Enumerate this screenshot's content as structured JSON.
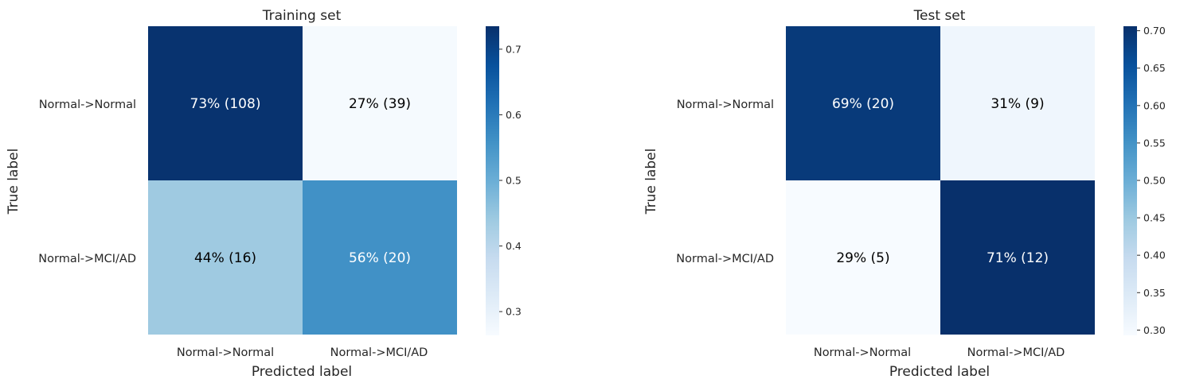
{
  "chart_data": [
    {
      "type": "heatmap",
      "title": "Training set",
      "xlabel": "Predicted label",
      "ylabel": "True label",
      "x_categories": [
        "Normal->Normal",
        "Normal->MCI/AD"
      ],
      "y_categories": [
        "Normal->Normal",
        "Normal->MCI/AD"
      ],
      "values": [
        [
          0.73,
          0.27
        ],
        [
          0.44,
          0.56
        ]
      ],
      "cell_labels": [
        [
          "73%  (108)",
          "27%  (39)"
        ],
        [
          "44%  (16)",
          "56%  (20)"
        ]
      ],
      "colorbar": {
        "range": [
          0.265,
          0.735
        ],
        "ticks": [
          0.3,
          0.4,
          0.5,
          0.6,
          0.7
        ],
        "tick_labels": [
          "0.3",
          "0.4",
          "0.5",
          "0.6",
          "0.7"
        ]
      },
      "colormap": "Blues"
    },
    {
      "type": "heatmap",
      "title": "Test set",
      "xlabel": "Predicted label",
      "ylabel": "True label",
      "x_categories": [
        "Normal->Normal",
        "Normal->MCI/AD"
      ],
      "y_categories": [
        "Normal->Normal",
        "Normal->MCI/AD"
      ],
      "values": [
        [
          0.69,
          0.31
        ],
        [
          0.29,
          0.71
        ]
      ],
      "cell_labels": [
        [
          "69%  (20)",
          "31%  (9)"
        ],
        [
          "29%  (5)",
          "71%  (12)"
        ]
      ],
      "colorbar": {
        "range": [
          0.294,
          0.706
        ],
        "ticks": [
          0.3,
          0.35,
          0.4,
          0.45,
          0.5,
          0.55,
          0.6,
          0.65,
          0.7
        ],
        "tick_labels": [
          "0.30",
          "0.35",
          "0.40",
          "0.45",
          "0.50",
          "0.55",
          "0.60",
          "0.65",
          "0.70"
        ]
      },
      "colormap": "Blues"
    }
  ]
}
